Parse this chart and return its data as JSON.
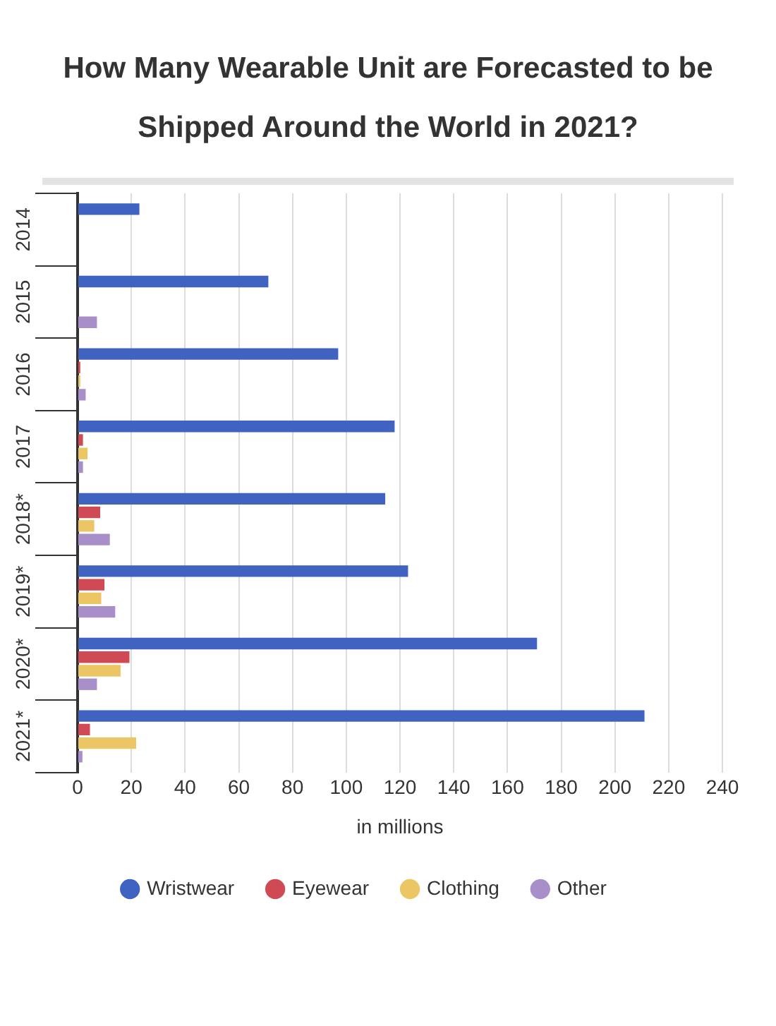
{
  "chart_data": {
    "type": "bar",
    "orientation": "horizontal",
    "title": "How Many Wearable Unit are Forecasted to be Shipped Around the World in 2021?",
    "xlabel": "in millions",
    "categories": [
      "2014",
      "2015",
      "2016",
      "2017",
      "2018*",
      "2019*",
      "2020*",
      "2021*"
    ],
    "series": [
      {
        "name": "Wristwear",
        "color": "#4062c0",
        "values": [
          23,
          71,
          97,
          118,
          114.5,
          123,
          171,
          211
        ]
      },
      {
        "name": "Eyewear",
        "color": "#d04a55",
        "values": [
          null,
          null,
          1,
          2,
          8.4,
          10,
          19.3,
          4.6
        ]
      },
      {
        "name": "Clothing",
        "color": "#ecc665",
        "values": [
          null,
          null,
          1,
          3.7,
          6.2,
          8.8,
          16,
          21.8
        ]
      },
      {
        "name": "Other",
        "color": "#a98fc9",
        "values": [
          null,
          7.2,
          3,
          2,
          12,
          14,
          7.2,
          1.8
        ]
      }
    ],
    "xlim": [
      0,
      240
    ],
    "xticks": [
      0,
      20,
      40,
      60,
      80,
      100,
      120,
      140,
      160,
      180,
      200,
      220,
      240
    ],
    "grid": "x",
    "legend": "bottom"
  }
}
